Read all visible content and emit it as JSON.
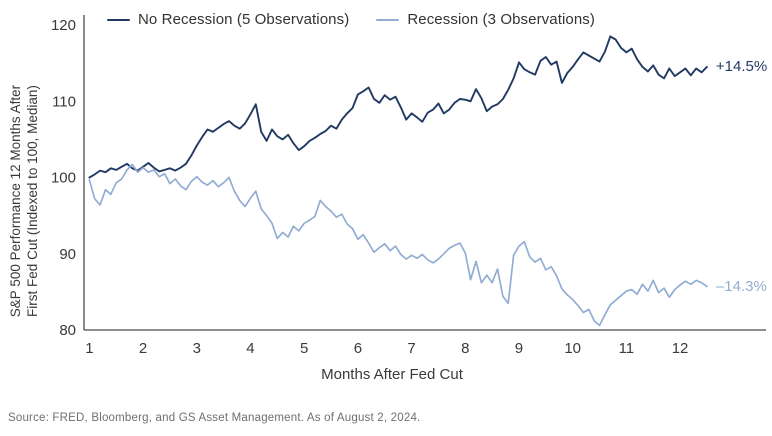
{
  "source_note": "Source: FRED, Bloomberg, and GS Asset Management. As of August 2, 2024.",
  "colors": {
    "no_recession": "#213a63",
    "recession": "#92add4",
    "axis": "#4a4a4a",
    "tick_text": "#3a3a3a",
    "source_text": "#6f6f6f"
  },
  "chart_data": {
    "type": "line",
    "title": "",
    "xlabel": "Months After Fed Cut",
    "ylabel_line1": "S&P 500 Performance 12 Months After",
    "ylabel_line2": "First Fed Cut (Indexed to 100, Median)",
    "xlim": [
      0.9,
      12.8
    ],
    "ylim": [
      80,
      120
    ],
    "x_ticks": [
      1,
      2,
      3,
      4,
      5,
      6,
      7,
      8,
      9,
      10,
      11,
      12
    ],
    "y_ticks": [
      80,
      90,
      100,
      110,
      120
    ],
    "grid": false,
    "legend_position": "top",
    "x_start": 1.0,
    "x_step": 0.1,
    "series": [
      {
        "id": "no-recession",
        "name": "No Recession (5 Observations)",
        "color": "#213a63",
        "end_label": "+14.5%",
        "final_pct": 14.5,
        "values": [
          100.0,
          100.4,
          100.9,
          100.7,
          101.2,
          101.0,
          101.4,
          101.8,
          101.2,
          100.9,
          101.4,
          101.9,
          101.3,
          100.8,
          101.0,
          101.2,
          100.9,
          101.3,
          101.8,
          102.9,
          104.2,
          105.3,
          106.3,
          106.0,
          106.5,
          107.0,
          107.4,
          106.8,
          106.4,
          107.1,
          108.3,
          109.6,
          106.0,
          104.8,
          106.3,
          105.4,
          105.0,
          105.6,
          104.5,
          103.6,
          104.1,
          104.8,
          105.2,
          105.7,
          106.1,
          106.8,
          106.4,
          107.6,
          108.4,
          109.1,
          110.9,
          111.3,
          111.8,
          110.3,
          109.8,
          110.8,
          110.2,
          110.6,
          109.2,
          107.6,
          108.4,
          107.9,
          107.3,
          108.5,
          108.9,
          109.7,
          108.4,
          108.9,
          109.8,
          110.3,
          110.2,
          110.0,
          111.6,
          110.4,
          108.7,
          109.3,
          109.6,
          110.3,
          111.5,
          113.0,
          115.1,
          114.2,
          113.8,
          113.5,
          115.3,
          115.8,
          114.8,
          115.2,
          112.4,
          113.7,
          114.5,
          115.5,
          116.4,
          116.0,
          115.6,
          115.2,
          116.5,
          118.5,
          118.1,
          117.0,
          116.4,
          116.9,
          115.5,
          114.5,
          113.9,
          114.7,
          113.5,
          113.0,
          114.3,
          113.3,
          113.8,
          114.3,
          113.4,
          114.3,
          113.8,
          114.5
        ]
      },
      {
        "id": "recession",
        "name": "Recession (3 Observations)",
        "color": "#92add4",
        "end_label": "–14.3%",
        "final_pct": -14.3,
        "values": [
          99.7,
          97.2,
          96.4,
          98.4,
          97.8,
          99.3,
          99.8,
          101.0,
          101.7,
          100.7,
          101.3,
          100.7,
          101.0,
          100.1,
          100.5,
          99.2,
          99.8,
          98.9,
          98.4,
          99.5,
          100.1,
          99.4,
          99.0,
          99.6,
          98.8,
          99.3,
          100.0,
          98.2,
          97.0,
          96.2,
          97.3,
          98.2,
          95.9,
          95.0,
          94.0,
          92.0,
          92.8,
          92.2,
          93.6,
          93.0,
          94.0,
          94.4,
          94.9,
          97.0,
          96.2,
          95.6,
          94.8,
          95.2,
          93.9,
          93.3,
          91.9,
          92.5,
          91.4,
          90.2,
          90.8,
          91.3,
          90.4,
          91.0,
          89.9,
          89.3,
          89.8,
          89.4,
          89.9,
          89.2,
          88.8,
          89.3,
          90.0,
          90.7,
          91.1,
          91.4,
          90.1,
          86.6,
          89.0,
          86.2,
          87.2,
          86.2,
          88.0,
          84.4,
          83.5,
          89.8,
          91.0,
          91.6,
          89.6,
          88.9,
          89.4,
          87.9,
          88.3,
          87.1,
          85.4,
          84.6,
          84.0,
          83.2,
          82.3,
          82.7,
          81.2,
          80.6,
          82.0,
          83.3,
          83.9,
          84.5,
          85.1,
          85.3,
          84.7,
          86.0,
          85.1,
          86.5,
          84.9,
          85.5,
          84.3,
          85.3,
          85.9,
          86.4,
          86.0,
          86.5,
          86.2,
          85.7
        ]
      }
    ]
  }
}
